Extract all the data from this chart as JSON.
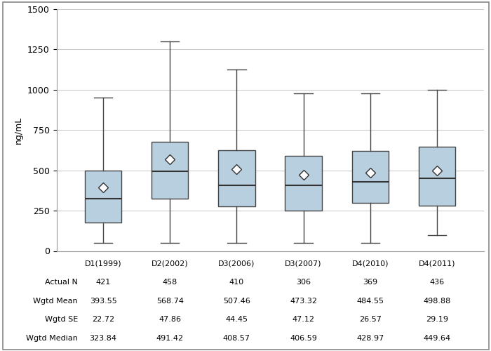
{
  "categories": [
    "D1(1999)",
    "D2(2002)",
    "D3(2006)",
    "D3(2007)",
    "D4(2010)",
    "D4(2011)"
  ],
  "box_data": [
    {
      "whislo": 50,
      "q1": 175,
      "med": 323.84,
      "q3": 500,
      "whishi": 950,
      "mean": 393.55
    },
    {
      "whislo": 50,
      "q1": 325,
      "med": 491.42,
      "q3": 675,
      "whishi": 1300,
      "mean": 568.74
    },
    {
      "whislo": 50,
      "q1": 275,
      "med": 408.57,
      "q3": 625,
      "whishi": 1125,
      "mean": 507.46
    },
    {
      "whislo": 50,
      "q1": 250,
      "med": 406.59,
      "q3": 590,
      "whishi": 975,
      "mean": 473.32
    },
    {
      "whislo": 50,
      "q1": 300,
      "med": 428.97,
      "q3": 620,
      "whishi": 975,
      "mean": 484.55
    },
    {
      "whislo": 100,
      "q1": 280,
      "med": 449.64,
      "q3": 645,
      "whishi": 1000,
      "mean": 498.88
    }
  ],
  "table_rows": [
    {
      "label": "Actual N",
      "values": [
        "421",
        "458",
        "410",
        "306",
        "369",
        "436"
      ]
    },
    {
      "label": "Wgtd Mean",
      "values": [
        "393.55",
        "568.74",
        "507.46",
        "473.32",
        "484.55",
        "498.88"
      ]
    },
    {
      "label": "Wgtd SE",
      "values": [
        "22.72",
        "47.86",
        "44.45",
        "47.12",
        "26.57",
        "29.19"
      ]
    },
    {
      "label": "Wgtd Median",
      "values": [
        "323.84",
        "491.42",
        "408.57",
        "406.59",
        "428.97",
        "449.64"
      ]
    }
  ],
  "ylabel": "ng/mL",
  "ylim": [
    0,
    1500
  ],
  "yticks": [
    0,
    250,
    500,
    750,
    1000,
    1250,
    1500
  ],
  "box_color": "#b8cfe0",
  "box_edge_color": "#444444",
  "whisker_color": "#444444",
  "median_color": "#333333",
  "cap_color": "#444444",
  "mean_marker_color": "#ffffff",
  "mean_marker_edge_color": "#333333",
  "background_color": "#ffffff",
  "grid_color": "#cccccc",
  "border_color": "#888888",
  "font_size_table": 8,
  "font_size_axis": 9
}
